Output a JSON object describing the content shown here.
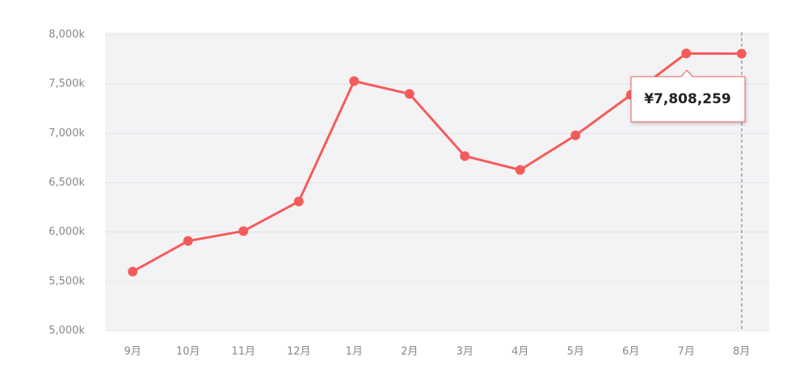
{
  "chart_data": {
    "type": "line",
    "categories": [
      "9月",
      "10月",
      "11月",
      "12月",
      "1月",
      "2月",
      "3月",
      "4月",
      "5月",
      "6月",
      "7月",
      "8月"
    ],
    "values": [
      5600000,
      5910000,
      6010000,
      6310000,
      7530000,
      7400000,
      6770000,
      6630000,
      6980000,
      7390000,
      7810000,
      7808259
    ],
    "value_labels": [
      null,
      null,
      null,
      null,
      null,
      null,
      null,
      null,
      null,
      null,
      null,
      "¥7,808,259"
    ],
    "color": "#f65b5b",
    "ylim": [
      5000000,
      8000000
    ],
    "yticks": [
      {
        "value": 5000000,
        "label": "5,000k"
      },
      {
        "value": 5500000,
        "label": "5,500k"
      },
      {
        "value": 6000000,
        "label": "6,000k"
      },
      {
        "value": 6500000,
        "label": "6,500k"
      },
      {
        "value": 7000000,
        "label": "7,000k"
      },
      {
        "value": 7500000,
        "label": "7,500k"
      },
      {
        "value": 8000000,
        "label": "8,000k"
      }
    ],
    "grid": true
  }
}
